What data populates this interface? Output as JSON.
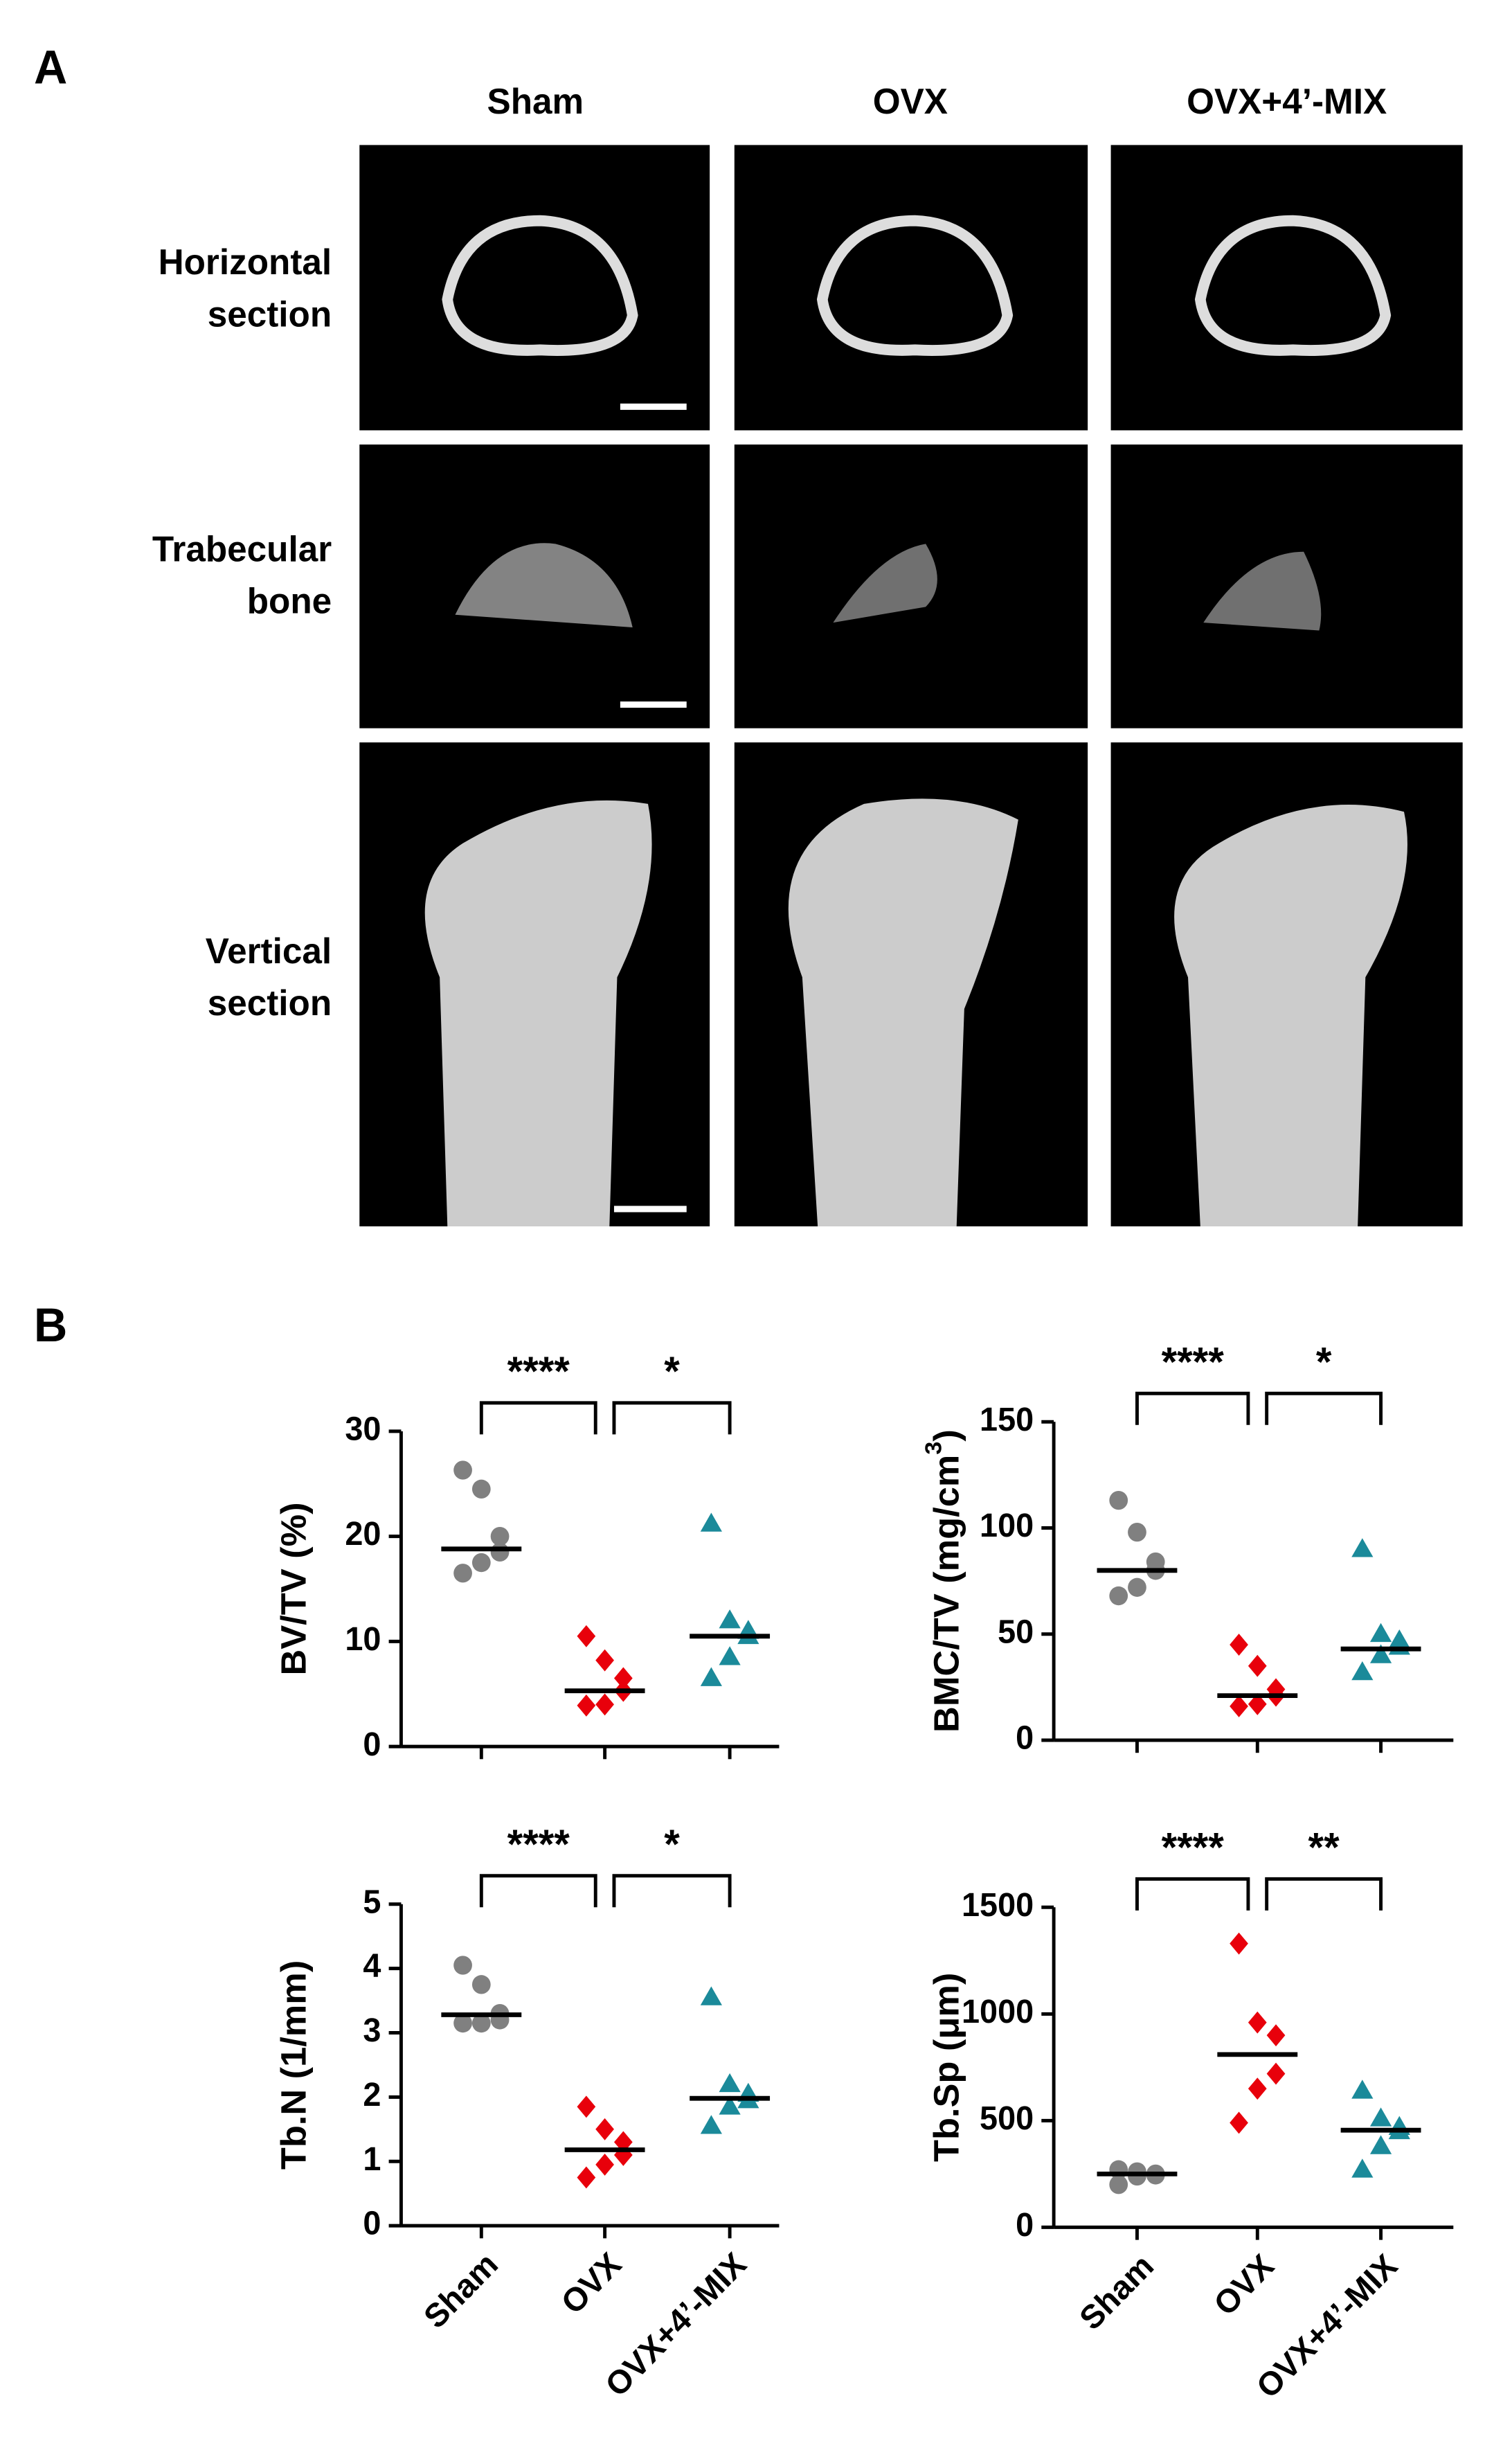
{
  "panel_a": {
    "label": "A",
    "columns": [
      "Sham",
      "OVX",
      "OVX+4’-MIX"
    ],
    "rows": [
      [
        "Horizontal",
        "section"
      ],
      [
        "Trabecular",
        "bone"
      ],
      [
        "Vertical",
        "section"
      ]
    ]
  },
  "panel_b": {
    "label": "B"
  },
  "chart_data": [
    {
      "type": "dotplot",
      "ylabel": [
        "BV/TV (%)"
      ],
      "ylim": [
        0,
        30
      ],
      "yticks": [
        0,
        10,
        20,
        30
      ],
      "colors": [
        "#808080",
        "#e8000b",
        "#1b8a9a"
      ],
      "markers": [
        "circle",
        "diamond",
        "triangle"
      ],
      "points": [
        [
          26.3,
          24.5,
          20,
          18.5,
          17.5,
          16.5
        ],
        [
          10.5,
          8.2,
          6.5,
          5.3,
          4,
          3.9
        ],
        [
          21.2,
          12,
          11,
          10.5,
          8.5,
          6.5
        ]
      ],
      "medians": [
        18.8,
        5.3,
        10.5
      ],
      "annotations": [
        {
          "text": "****",
          "from": 0,
          "to": 1
        },
        {
          "text": "*",
          "from": 1,
          "to": 2
        }
      ]
    },
    {
      "type": "dotplot",
      "ylabel": [
        "BMC/TV (mg/cm",
        "3",
        ")"
      ],
      "ylim": [
        0,
        150
      ],
      "yticks": [
        0,
        50,
        100,
        150
      ],
      "colors": [
        "#808080",
        "#e8000b",
        "#1b8a9a"
      ],
      "markers": [
        "circle",
        "diamond",
        "triangle"
      ],
      "points": [
        [
          113,
          98,
          84,
          80,
          72,
          68
        ],
        [
          45,
          35,
          24,
          21,
          17,
          16
        ],
        [
          90,
          50,
          47,
          44,
          40,
          32
        ]
      ],
      "medians": [
        80,
        21,
        43
      ],
      "annotations": [
        {
          "text": "****",
          "from": 0,
          "to": 1
        },
        {
          "text": "*",
          "from": 1,
          "to": 2
        }
      ]
    },
    {
      "type": "dotplot",
      "ylabel": [
        "Tb.N (1/mm)"
      ],
      "ylim": [
        0,
        5
      ],
      "yticks": [
        0,
        1,
        2,
        3,
        4,
        5
      ],
      "categories": [
        "Sham",
        "OVX",
        "OVX+4’-MIX"
      ],
      "colors": [
        "#808080",
        "#e8000b",
        "#1b8a9a"
      ],
      "markers": [
        "circle",
        "diamond",
        "triangle"
      ],
      "points": [
        [
          4.05,
          3.75,
          3.3,
          3.2,
          3.15,
          3.15
        ],
        [
          1.85,
          1.5,
          1.3,
          1.1,
          0.95,
          0.75
        ],
        [
          3.55,
          2.2,
          2.05,
          1.95,
          1.85,
          1.55
        ]
      ],
      "medians": [
        3.28,
        1.18,
        1.98
      ],
      "annotations": [
        {
          "text": "****",
          "from": 0,
          "to": 1
        },
        {
          "text": "*",
          "from": 1,
          "to": 2
        }
      ]
    },
    {
      "type": "dotplot",
      "ylabel": [
        "Tb.Sp (μm)"
      ],
      "ylim": [
        0,
        1500
      ],
      "yticks": [
        0,
        500,
        1000,
        1500
      ],
      "categories": [
        "Sham",
        "OVX",
        "OVX+4’-MIX"
      ],
      "colors": [
        "#808080",
        "#e8000b",
        "#1b8a9a"
      ],
      "markers": [
        "circle",
        "diamond",
        "triangle"
      ],
      "points": [
        [
          270,
          260,
          250,
          245,
          240,
          200
        ],
        [
          1330,
          960,
          900,
          720,
          650,
          490
        ],
        [
          640,
          510,
          470,
          450,
          380,
          270
        ]
      ],
      "medians": [
        250,
        810,
        455
      ],
      "annotations": [
        {
          "text": "****",
          "from": 0,
          "to": 1
        },
        {
          "text": "**",
          "from": 1,
          "to": 2
        }
      ]
    }
  ]
}
